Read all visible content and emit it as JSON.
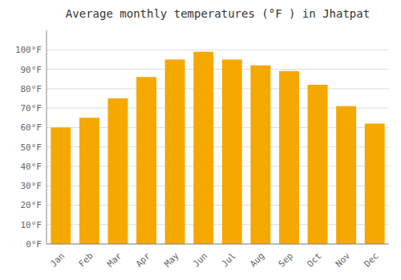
{
  "chart_data": {
    "type": "bar",
    "title": "Average monthly temperatures (°F ) in Jhatpat",
    "categories": [
      "Jan",
      "Feb",
      "Mar",
      "Apr",
      "May",
      "Jun",
      "Jul",
      "Aug",
      "Sep",
      "Oct",
      "Nov",
      "Dec"
    ],
    "values": [
      60,
      65,
      75,
      86,
      95,
      99,
      95,
      92,
      89,
      82,
      71,
      62
    ],
    "color": "#F5A800",
    "ylim": [
      0,
      110
    ],
    "yticks": [
      {
        "value": 0,
        "label": "0°F"
      },
      {
        "value": 10,
        "label": "10°F"
      },
      {
        "value": 20,
        "label": "20°F"
      },
      {
        "value": 30,
        "label": "30°F"
      },
      {
        "value": 40,
        "label": "40°F"
      },
      {
        "value": 50,
        "label": "50°F"
      },
      {
        "value": 60,
        "label": "60°F"
      },
      {
        "value": 70,
        "label": "70°F"
      },
      {
        "value": 80,
        "label": "80°F"
      },
      {
        "value": 90,
        "label": "90°F"
      },
      {
        "value": 100,
        "label": "100°F"
      }
    ],
    "grid": true
  }
}
